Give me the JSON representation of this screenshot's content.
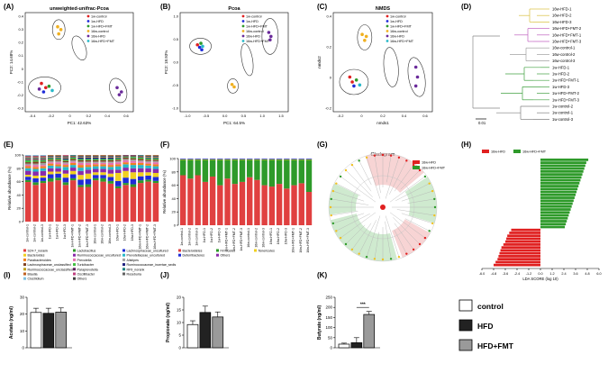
{
  "colors": {
    "red": "#e02020",
    "green": "#2e9a2a",
    "blue": "#1e2bd8",
    "yellow": "#f0d020",
    "purple": "#6a2a9a",
    "cyan": "#28b8c8",
    "orange": "#f08020",
    "pink": "#e870b0",
    "gray": "#9a9a9a",
    "dark": "#222222",
    "black": "#000000",
    "lightgray": "#c8c8c8"
  },
  "panel_labels": [
    "(A)",
    "(B)",
    "(C)",
    "(D)",
    "(E)",
    "(F)",
    "(G)",
    "(H)",
    "(I)",
    "(J)",
    "(K)"
  ],
  "groups": [
    "1w-control",
    "1w-HFD",
    "1w-HFD+FMT",
    "16w-control",
    "16w-HFD",
    "16w-HFD+FMT"
  ],
  "group_colors": [
    "#e02020",
    "#1e2bd8",
    "#2e9a2a",
    "#f0b020",
    "#6a2a9a",
    "#28b8c8"
  ],
  "chart_data": [
    {
      "panel": "A",
      "type": "scatter",
      "title": "unweighted-unifrac-Pcoa",
      "xlabel": "PC1: 42.63%",
      "ylabel": "PC2: 14.68%",
      "xlim": [
        -0.4,
        0.6
      ],
      "ylim": [
        -0.3,
        0.4
      ],
      "xticks": [
        "-0.4",
        "-0.2",
        "0",
        "0.2",
        "0.4",
        "0.6"
      ],
      "yticks": [
        "0.4",
        "0.3",
        "0.2",
        "0.1",
        "0",
        "-0.1",
        "-0.2",
        "-0.3"
      ],
      "legend": [
        "1w-control",
        "1w-HFD",
        "1w-HFD+FMT",
        "16w-control",
        "16w-HFD",
        "16w-HFD+FMT"
      ],
      "points": [
        {
          "x": -0.1,
          "y": 0.3,
          "g": 3
        },
        {
          "x": -0.09,
          "y": 0.25,
          "g": 3
        },
        {
          "x": -0.07,
          "y": 0.28,
          "g": 3
        },
        {
          "x": -0.25,
          "y": -0.1,
          "g": 0
        },
        {
          "x": -0.21,
          "y": -0.13,
          "g": 0
        },
        {
          "x": -0.23,
          "y": -0.16,
          "g": 1
        },
        {
          "x": -0.18,
          "y": -0.12,
          "g": 2
        },
        {
          "x": -0.15,
          "y": -0.15,
          "g": 5
        },
        {
          "x": -0.27,
          "y": -0.14,
          "g": 4
        },
        {
          "x": 0.45,
          "y": -0.13,
          "g": 4
        },
        {
          "x": 0.49,
          "y": -0.16,
          "g": 4
        },
        {
          "x": 0.47,
          "y": -0.18,
          "g": 4
        }
      ]
    },
    {
      "panel": "B",
      "type": "scatter",
      "title": "Pcoa",
      "xlabel": "PC1: 64.5%",
      "ylabel": "PC2: 18.93%",
      "xlim": [
        -1.0,
        1.5
      ],
      "ylim": [
        -1.0,
        1.0
      ],
      "xticks": [
        "-1.0",
        "-0.5",
        "0.0",
        "0.5",
        "1.0",
        "1.5"
      ],
      "yticks": [
        "1.0",
        "0.5",
        "0.0",
        "-0.5",
        "-1.0"
      ],
      "legend": [
        "1w-control",
        "1w-HFD",
        "1w-HFD+FMT",
        "16w-control",
        "16w-HFD",
        "16w-HFD+FMT"
      ],
      "points": [
        {
          "x": -0.6,
          "y": 0.35,
          "g": 0
        },
        {
          "x": -0.55,
          "y": 0.3,
          "g": 1
        },
        {
          "x": -0.52,
          "y": 0.38,
          "g": 2
        },
        {
          "x": -0.48,
          "y": 0.32,
          "g": 5
        },
        {
          "x": -0.5,
          "y": 0.25,
          "g": 1
        },
        {
          "x": 0.2,
          "y": -0.45,
          "g": 3
        },
        {
          "x": 0.25,
          "y": -0.5,
          "g": 3
        },
        {
          "x": 1.05,
          "y": 0.6,
          "g": 4
        },
        {
          "x": 1.1,
          "y": 0.52,
          "g": 4
        },
        {
          "x": 1.08,
          "y": 0.45,
          "g": 4
        }
      ]
    },
    {
      "panel": "C",
      "type": "scatter",
      "title": "NMDS",
      "xlabel": "nmds1",
      "ylabel": "nmds2",
      "xlim": [
        -0.4,
        0.8
      ],
      "ylim": [
        -0.4,
        0.6
      ],
      "xticks": [
        "-0.2",
        "0",
        "0.2",
        "0.4",
        "0.6"
      ],
      "yticks": [
        "0.4",
        "0.2",
        "0",
        "-0.2"
      ],
      "legend": [
        "1w-control",
        "1w-HFD",
        "1w-HFD+FMT",
        "16w-control",
        "16w-HFD",
        "16w-HFD+FMT"
      ],
      "points": [
        {
          "x": -0.05,
          "y": 0.38,
          "g": 3
        },
        {
          "x": -0.02,
          "y": 0.32,
          "g": 3
        },
        {
          "x": 0.0,
          "y": 0.36,
          "g": 3
        },
        {
          "x": -0.2,
          "y": -0.05,
          "g": 0
        },
        {
          "x": -0.17,
          "y": -0.1,
          "g": 0
        },
        {
          "x": -0.15,
          "y": -0.14,
          "g": 1
        },
        {
          "x": -0.12,
          "y": -0.08,
          "g": 2
        },
        {
          "x": -0.08,
          "y": -0.13,
          "g": 5
        },
        {
          "x": 0.6,
          "y": 0.05,
          "g": 4
        },
        {
          "x": 0.62,
          "y": -0.05,
          "g": 4
        },
        {
          "x": 0.6,
          "y": -0.14,
          "g": 4
        }
      ]
    },
    {
      "panel": "D",
      "type": "dendrogram",
      "scale_label": "0.01",
      "leaves": [
        "16w-HFD-1",
        "16w-HFD-2",
        "16w-HFD-3",
        "16w-HFD+FMT-2",
        "16w-HFD+FMT-1",
        "16w-HFD+FMT-3",
        "16w-control-1",
        "16w-control-2",
        "16w-control-3",
        "1w-HFD-1",
        "1w-HFD-2",
        "1w-HFD+FMT-1",
        "1w-HFD-3",
        "1w-HFD+FMT-2",
        "1w-HFD+FMT-3",
        "1w-control-2",
        "1w-control-1",
        "1w-control-3"
      ]
    },
    {
      "panel": "E",
      "type": "bar",
      "ylabel": "Relative abundance (%)",
      "ylim": [
        0,
        100
      ],
      "categories": [
        "1w-control-1",
        "1w-control-2",
        "1w-control-3",
        "1w-HFD-1",
        "1w-HFD-2",
        "1w-HFD-3",
        "1w-HFD+FMT-1",
        "1w-HFD+FMT-2",
        "1w-HFD+FMT-3",
        "16w-control-1",
        "16w-control-2",
        "16w-control-3",
        "16w-HFD-1",
        "16w-HFD-2",
        "16w-HFD-3",
        "16w-HFD+FMT-1",
        "16w-HFD+FMT-2",
        "16w-HFD+FMT-3"
      ],
      "series_names": [
        "S24-7_norank",
        "Lactobacillus",
        "Lachnospiraceae_uncultured",
        "Bacteroides",
        "Ruminococcaceae_uncultured",
        "Prevotellaceae_uncultured",
        "Parabacteroides",
        "Prevotella",
        "Alistipes",
        "Lachnospiraceae_unclassified",
        "Turicibacter",
        "Ruminococcaceae_incertae_sedis",
        "Ruminococcaceae_unclassified",
        "Paraprevotella",
        "RF9_norank",
        "Blautia",
        "Oscillibacter",
        "Roseburia",
        "Clostridium",
        "Others"
      ],
      "series_colors": [
        "#e04040",
        "#2e9a2a",
        "#1e2bd8",
        "#f0d020",
        "#8a2aaa",
        "#28b8c8",
        "#f08020",
        "#e870b0",
        "#a0a0a0",
        "#804020",
        "#40c040",
        "#202080",
        "#c0a020",
        "#602060",
        "#208080",
        "#c06020",
        "#c04080",
        "#606060",
        "#80c0e0",
        "#404040"
      ],
      "values": [
        [
          60,
          3,
          5,
          3,
          6,
          4,
          3,
          2,
          2,
          2,
          3,
          1,
          1,
          1,
          1,
          1,
          1,
          1,
          1,
          0
        ],
        [
          55,
          4,
          6,
          4,
          6,
          4,
          3,
          3,
          2,
          3,
          2,
          1,
          1,
          1,
          1,
          1,
          1,
          1,
          1,
          0
        ],
        [
          58,
          3,
          5,
          3,
          7,
          4,
          3,
          2,
          3,
          2,
          2,
          1,
          1,
          1,
          1,
          1,
          1,
          1,
          1,
          0
        ],
        [
          60,
          5,
          6,
          4,
          5,
          4,
          3,
          2,
          2,
          2,
          2,
          1,
          1,
          1,
          1,
          1,
          0,
          0,
          0,
          0
        ],
        [
          62,
          4,
          6,
          3,
          5,
          3,
          3,
          3,
          2,
          2,
          2,
          1,
          1,
          1,
          1,
          1,
          0,
          0,
          0,
          0
        ],
        [
          55,
          4,
          7,
          6,
          5,
          5,
          3,
          2,
          2,
          2,
          2,
          2,
          1,
          1,
          1,
          1,
          1,
          0,
          0,
          0
        ],
        [
          62,
          3,
          6,
          5,
          5,
          4,
          3,
          2,
          2,
          2,
          2,
          1,
          1,
          1,
          1,
          0,
          0,
          0,
          0,
          0
        ],
        [
          52,
          3,
          8,
          7,
          6,
          5,
          4,
          3,
          2,
          2,
          2,
          2,
          1,
          1,
          1,
          1,
          0,
          0,
          0,
          0
        ],
        [
          52,
          4,
          8,
          8,
          6,
          4,
          3,
          3,
          2,
          2,
          2,
          2,
          1,
          1,
          1,
          1,
          0,
          0,
          0,
          0
        ],
        [
          62,
          3,
          5,
          4,
          5,
          4,
          3,
          2,
          2,
          2,
          2,
          2,
          1,
          1,
          1,
          1,
          0,
          0,
          0,
          0
        ],
        [
          60,
          5,
          5,
          4,
          5,
          4,
          3,
          2,
          2,
          2,
          2,
          2,
          1,
          1,
          1,
          1,
          0,
          0,
          0,
          0
        ],
        [
          57,
          4,
          6,
          5,
          6,
          4,
          3,
          3,
          2,
          2,
          2,
          2,
          1,
          1,
          1,
          1,
          0,
          0,
          0,
          0
        ],
        [
          50,
          3,
          8,
          12,
          5,
          5,
          3,
          3,
          2,
          2,
          2,
          1,
          1,
          1,
          1,
          1,
          0,
          0,
          0,
          0
        ],
        [
          55,
          3,
          8,
          10,
          5,
          5,
          3,
          3,
          2,
          2,
          1,
          1,
          1,
          1,
          0,
          0,
          0,
          0,
          0,
          0
        ],
        [
          52,
          4,
          8,
          10,
          6,
          5,
          3,
          3,
          2,
          2,
          2,
          1,
          1,
          1,
          0,
          0,
          0,
          0,
          0,
          0
        ],
        [
          58,
          4,
          6,
          6,
          6,
          5,
          3,
          2,
          2,
          2,
          2,
          1,
          1,
          1,
          1,
          0,
          0,
          0,
          0,
          0
        ],
        [
          60,
          3,
          6,
          5,
          6,
          4,
          3,
          2,
          2,
          2,
          2,
          1,
          1,
          1,
          1,
          1,
          0,
          0,
          0,
          0
        ],
        [
          58,
          3,
          6,
          6,
          6,
          4,
          3,
          3,
          2,
          2,
          2,
          1,
          1,
          1,
          1,
          1,
          0,
          0,
          0,
          0
        ]
      ]
    },
    {
      "panel": "F",
      "type": "bar",
      "ylabel": "Relative abundance (%)",
      "ylim": [
        0,
        100
      ],
      "categories": [
        "1w-control-1",
        "1w-control-2",
        "1w-control-3",
        "1w-HFD-1",
        "1w-HFD-2",
        "1w-HFD-3",
        "1w-HFD+FMT-1",
        "1w-HFD+FMT-2",
        "1w-HFD+FMT-3",
        "16w-control-1",
        "16w-control-2",
        "16w-control-3",
        "16w-HFD-1",
        "16w-HFD-2",
        "16w-HFD-3",
        "16w-HFD+FMT-1",
        "16w-HFD+FMT-2",
        "16w-HFD+FMT-3"
      ],
      "series_names": [
        "Bacteroidetes",
        "Firmicutes",
        "Tenericutes",
        "Deferribacteres",
        "Others"
      ],
      "series_colors": [
        "#e04040",
        "#2e9a2a",
        "#f0d020",
        "#1e2bd8",
        "#8a2aaa"
      ],
      "values": [
        [
          75,
          23,
          1,
          1,
          0
        ],
        [
          70,
          28,
          1,
          1,
          0
        ],
        [
          75,
          23,
          1,
          1,
          0
        ],
        [
          65,
          33,
          1,
          1,
          0
        ],
        [
          73,
          25,
          1,
          1,
          0
        ],
        [
          60,
          38,
          1,
          1,
          0
        ],
        [
          70,
          28,
          1,
          1,
          0
        ],
        [
          62,
          36,
          1,
          1,
          0
        ],
        [
          65,
          33,
          1,
          1,
          0
        ],
        [
          72,
          26,
          1,
          1,
          0
        ],
        [
          68,
          30,
          1,
          1,
          0
        ],
        [
          60,
          38,
          1,
          1,
          0
        ],
        [
          58,
          40,
          1,
          1,
          0
        ],
        [
          62,
          36,
          1,
          1,
          0
        ],
        [
          55,
          43,
          1,
          1,
          0
        ],
        [
          60,
          38,
          1,
          1,
          0
        ],
        [
          63,
          35,
          1,
          1,
          0
        ],
        [
          50,
          48,
          1,
          1,
          0
        ]
      ]
    },
    {
      "panel": "G",
      "type": "cladogram",
      "title": "Cladogram",
      "legend": [
        "16w-HFD",
        "16w-HFD+FMT"
      ]
    },
    {
      "panel": "H",
      "type": "bar",
      "orientation": "horizontal",
      "xlabel": "LDA SCORE (log 10)",
      "xlim": [
        -6.0,
        6.0
      ],
      "xticks": [
        "-6.0",
        "-4.8",
        "-3.6",
        "-2.4",
        "-1.2",
        "0.0",
        "1.2",
        "2.4",
        "3.6",
        "4.8",
        "6.0"
      ],
      "legend": [
        "16w-HFD",
        "16w-HFD+FMT"
      ],
      "values": [
        4.9,
        4.7,
        4.6,
        4.5,
        4.4,
        4.3,
        4.2,
        4.1,
        4.0,
        3.9,
        3.8,
        3.7,
        3.6,
        3.5,
        3.4,
        3.3,
        3.2,
        3.1,
        3.0,
        2.9,
        2.8,
        2.7,
        2.6,
        2.5,
        -3.0,
        -3.2,
        -3.4,
        -3.5,
        -3.6,
        -3.8,
        -4.0,
        -4.1,
        -4.2,
        -4.3,
        -4.4,
        -4.6,
        -4.8
      ]
    },
    {
      "panel": "I",
      "type": "bar",
      "ylabel": "Acetate (ng/ml)",
      "ylim": [
        0,
        30
      ],
      "yticks": [
        "0",
        "10",
        "20",
        "30"
      ],
      "categories": [
        "control",
        "HFD",
        "HFD+FMT"
      ],
      "values": [
        21,
        20.5,
        21.2
      ],
      "errors": [
        2.5,
        3.0,
        2.5
      ]
    },
    {
      "panel": "J",
      "type": "bar",
      "ylabel": "Propionate (ng/ml)",
      "ylim": [
        0,
        20
      ],
      "yticks": [
        "0",
        "5",
        "10",
        "15",
        "20"
      ],
      "categories": [
        "control",
        "HFD",
        "HFD+FMT"
      ],
      "values": [
        9.2,
        14.0,
        12.2
      ],
      "errors": [
        1.5,
        2.5,
        2.0
      ]
    },
    {
      "panel": "K",
      "type": "bar",
      "ylabel": "Butyrate (ng/ml)",
      "ylim": [
        0,
        250
      ],
      "yticks": [
        "0",
        "50",
        "100",
        "150",
        "200",
        "250"
      ],
      "categories": [
        "control",
        "HFD",
        "HFD+FMT"
      ],
      "values": [
        18,
        25,
        165
      ],
      "errors": [
        5,
        25,
        15
      ],
      "annotation": "***"
    }
  ],
  "bar_legend": {
    "items": [
      "control",
      "HFD",
      "HFD+FMT"
    ],
    "colors": [
      "#ffffff",
      "#222222",
      "#9a9a9a"
    ]
  }
}
